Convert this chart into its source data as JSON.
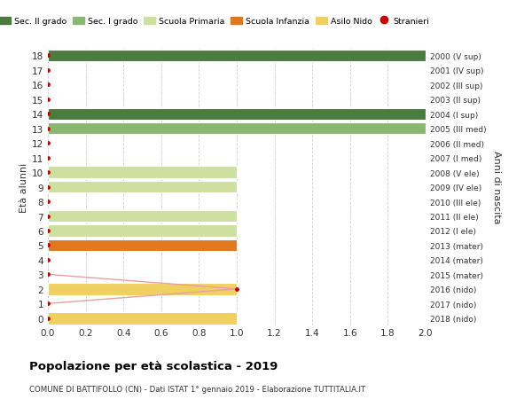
{
  "ages": [
    0,
    1,
    2,
    3,
    4,
    5,
    6,
    7,
    8,
    9,
    10,
    11,
    12,
    13,
    14,
    15,
    16,
    17,
    18
  ],
  "right_labels": [
    "2018 (nido)",
    "2017 (nido)",
    "2016 (nido)",
    "2015 (mater)",
    "2014 (mater)",
    "2013 (mater)",
    "2012 (I ele)",
    "2011 (II ele)",
    "2010 (III ele)",
    "2009 (IV ele)",
    "2008 (V ele)",
    "2007 (I med)",
    "2006 (II med)",
    "2005 (III med)",
    "2004 (I sup)",
    "2003 (II sup)",
    "2002 (III sup)",
    "2001 (IV sup)",
    "2000 (V sup)"
  ],
  "bars": [
    {
      "age": 0,
      "value": 1.0,
      "color": "#f0d060",
      "category": "Asilo Nido"
    },
    {
      "age": 2,
      "value": 1.0,
      "color": "#f0d060",
      "category": "Asilo Nido"
    },
    {
      "age": 5,
      "value": 1.0,
      "color": "#e07820",
      "category": "Scuola Infanzia"
    },
    {
      "age": 6,
      "value": 1.0,
      "color": "#cde0a0",
      "category": "Scuola Primaria"
    },
    {
      "age": 7,
      "value": 1.0,
      "color": "#cde0a0",
      "category": "Scuola Primaria"
    },
    {
      "age": 9,
      "value": 1.0,
      "color": "#cde0a0",
      "category": "Scuola Primaria"
    },
    {
      "age": 10,
      "value": 1.0,
      "color": "#cde0a0",
      "category": "Scuola Primaria"
    },
    {
      "age": 13,
      "value": 2.0,
      "color": "#8ab870",
      "category": "Sec. I grado"
    },
    {
      "age": 14,
      "value": 2.0,
      "color": "#4a7c3f",
      "category": "Sec. II grado"
    },
    {
      "age": 18,
      "value": 2.0,
      "color": "#4a7c3f",
      "category": "Sec. II grado"
    }
  ],
  "stranieri_line_ages": [
    3,
    2,
    1
  ],
  "stranieri_line_values": [
    0,
    1.0,
    0
  ],
  "stranieri_dot_ages": [
    0,
    1,
    2,
    3,
    4,
    5,
    6,
    7,
    8,
    9,
    10,
    11,
    12,
    13,
    14,
    15,
    16,
    17,
    18
  ],
  "stranieri_dot_values": [
    0,
    0,
    1,
    0,
    0,
    0,
    0,
    0,
    0,
    0,
    0,
    0,
    0,
    0,
    0,
    0,
    0,
    0,
    0
  ],
  "stranieri_color": "#cc0000",
  "stranieri_line_color": "#e8a0a0",
  "xlim": [
    0,
    2.0
  ],
  "xticks": [
    0,
    0.2,
    0.4,
    0.6,
    0.8,
    1.0,
    1.2,
    1.4,
    1.6,
    1.8,
    2.0
  ],
  "bar_height": 0.82,
  "title": "Popolazione per età scolastica - 2019",
  "subtitle": "COMUNE DI BATTIFOLLO (CN) - Dati ISTAT 1° gennaio 2019 - Elaborazione TUTTITALIA.IT",
  "ylabel": "Età alunni",
  "right_ylabel": "Anni di nascita",
  "legend_items": [
    {
      "label": "Sec. II grado",
      "color": "#4a7c3f",
      "type": "patch"
    },
    {
      "label": "Sec. I grado",
      "color": "#8ab870",
      "type": "patch"
    },
    {
      "label": "Scuola Primaria",
      "color": "#cde0a0",
      "type": "patch"
    },
    {
      "label": "Scuola Infanzia",
      "color": "#e07820",
      "type": "patch"
    },
    {
      "label": "Asilo Nido",
      "color": "#f0d060",
      "type": "patch"
    },
    {
      "label": "Stranieri",
      "color": "#cc0000",
      "type": "marker"
    }
  ],
  "bg_color": "#ffffff",
  "grid_color": "#d0d0d0",
  "font_color": "#333333"
}
